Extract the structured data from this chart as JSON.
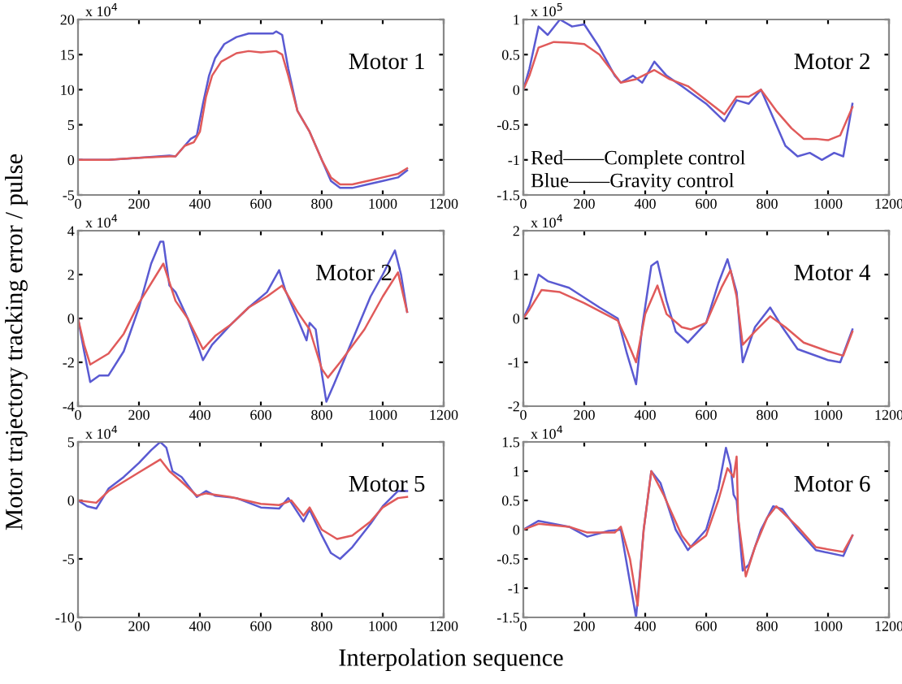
{
  "chart_data": [
    {
      "type": "line",
      "xlim": [
        0,
        1200
      ],
      "xticks": [
        0,
        200,
        400,
        600,
        800,
        1000,
        1200
      ],
      "ylim": [
        -5,
        20
      ],
      "yticks": [
        -5,
        0,
        5,
        10,
        15,
        20
      ],
      "grid": false,
      "annotations": [
        "x 10$^{4}$",
        "Motor 1"
      ],
      "series": [
        {
          "color": "#5a5ad2",
          "x": [
            0,
            100,
            200,
            300,
            320,
            350,
            370,
            390,
            410,
            430,
            450,
            480,
            520,
            560,
            600,
            640,
            650,
            670,
            690,
            720,
            760,
            800,
            830,
            860,
            900,
            950,
            1000,
            1050,
            1080
          ],
          "values": [
            0,
            0,
            0.3,
            0.6,
            0.5,
            2,
            3,
            3.5,
            8,
            12,
            14.5,
            16.5,
            17.5,
            18,
            18,
            18,
            18.3,
            17.8,
            13,
            7,
            4,
            0,
            -3,
            -4,
            -4,
            -3.5,
            -3,
            -2.5,
            -1.5
          ]
        },
        {
          "color": "#e05a5a",
          "x": [
            0,
            100,
            200,
            300,
            320,
            350,
            380,
            400,
            420,
            440,
            470,
            520,
            560,
            600,
            650,
            670,
            690,
            720,
            760,
            800,
            830,
            860,
            900,
            950,
            1000,
            1050,
            1080
          ],
          "values": [
            0,
            0,
            0.3,
            0.5,
            0.5,
            2,
            2.5,
            4,
            9,
            12,
            14,
            15.2,
            15.5,
            15.3,
            15.5,
            15,
            12,
            7,
            4,
            0,
            -2.5,
            -3.5,
            -3.5,
            -3,
            -2.5,
            -2,
            -1.2
          ]
        }
      ]
    },
    {
      "type": "line",
      "xlim": [
        0,
        1200
      ],
      "xticks": [
        0,
        200,
        400,
        600,
        800,
        1000,
        1200
      ],
      "ylim": [
        -1.5,
        1
      ],
      "yticks": [
        -1.5,
        -1,
        -0.5,
        0,
        0.5,
        1
      ],
      "grid": false,
      "annotations": [
        "x 10$^{5}$",
        "Motor 2",
        "Red——Complete control",
        "Blue——Gravity control"
      ],
      "series": [
        {
          "color": "#5a5ad2",
          "x": [
            0,
            20,
            50,
            80,
            120,
            160,
            200,
            250,
            300,
            320,
            360,
            390,
            430,
            470,
            520,
            600,
            660,
            700,
            740,
            780,
            820,
            860,
            900,
            940,
            980,
            1020,
            1050,
            1080
          ],
          "values": [
            0,
            0.3,
            0.9,
            0.78,
            1.0,
            0.9,
            0.93,
            0.6,
            0.2,
            0.1,
            0.2,
            0.1,
            0.4,
            0.2,
            0.05,
            -0.2,
            -0.45,
            -0.15,
            -0.2,
            0,
            -0.4,
            -0.8,
            -0.95,
            -0.9,
            -1.0,
            -0.9,
            -0.95,
            -0.2
          ]
        },
        {
          "color": "#e05a5a",
          "x": [
            0,
            20,
            50,
            100,
            150,
            200,
            250,
            320,
            370,
            430,
            480,
            540,
            600,
            660,
            700,
            740,
            780,
            830,
            880,
            920,
            960,
            1000,
            1040,
            1080
          ],
          "values": [
            0,
            0.2,
            0.6,
            0.68,
            0.67,
            0.65,
            0.5,
            0.1,
            0.15,
            0.28,
            0.15,
            0.05,
            -0.15,
            -0.35,
            -0.1,
            -0.1,
            0,
            -0.3,
            -0.55,
            -0.7,
            -0.7,
            -0.72,
            -0.65,
            -0.25
          ]
        }
      ]
    },
    {
      "type": "line",
      "xlim": [
        0,
        1200
      ],
      "xticks": [
        0,
        200,
        400,
        600,
        800,
        1000,
        1200
      ],
      "ylim": [
        -4,
        4
      ],
      "yticks": [
        -4,
        -2,
        0,
        2,
        4
      ],
      "grid": false,
      "ylabel": "Motor trajectory tracking error / pulse",
      "annotations": [
        "x 10$^{4}$",
        "Motor 2"
      ],
      "series": [
        {
          "color": "#5a5ad2",
          "x": [
            0,
            20,
            40,
            70,
            100,
            150,
            200,
            240,
            270,
            280,
            300,
            320,
            360,
            400,
            410,
            440,
            500,
            560,
            620,
            660,
            680,
            720,
            750,
            760,
            780,
            800,
            815,
            840,
            900,
            960,
            1000,
            1040,
            1060,
            1080
          ],
          "values": [
            0,
            -1.5,
            -2.9,
            -2.6,
            -2.6,
            -1.5,
            0.5,
            2.5,
            3.5,
            3.5,
            1.5,
            1.2,
            0,
            -1.5,
            -1.9,
            -1.2,
            -0.3,
            0.5,
            1.2,
            2.2,
            1.3,
            0,
            -1,
            -0.2,
            -0.5,
            -2.5,
            -3.8,
            -3,
            -1,
            1,
            2,
            3.1,
            2,
            0.3
          ]
        },
        {
          "color": "#e05a5a",
          "x": [
            0,
            20,
            40,
            100,
            150,
            200,
            280,
            320,
            360,
            410,
            450,
            500,
            560,
            620,
            670,
            720,
            760,
            800,
            820,
            860,
            940,
            1000,
            1050,
            1080
          ],
          "values": [
            0,
            -1.2,
            -2.1,
            -1.6,
            -0.7,
            0.7,
            2.5,
            0.8,
            0,
            -1.4,
            -0.8,
            -0.3,
            0.5,
            1,
            1.5,
            0.3,
            -0.5,
            -2.3,
            -2.7,
            -2,
            -0.5,
            1,
            2.1,
            0.3
          ]
        }
      ]
    },
    {
      "type": "line",
      "xlim": [
        0,
        1200
      ],
      "xticks": [
        0,
        200,
        400,
        600,
        800,
        1000,
        1200
      ],
      "ylim": [
        -2,
        2
      ],
      "yticks": [
        -2,
        -1,
        0,
        1,
        2
      ],
      "grid": false,
      "annotations": [
        "x 10$^{4}$",
        "Motor 4"
      ],
      "series": [
        {
          "color": "#5a5ad2",
          "x": [
            0,
            20,
            50,
            80,
            150,
            250,
            310,
            340,
            370,
            390,
            420,
            440,
            470,
            500,
            540,
            600,
            640,
            670,
            700,
            720,
            760,
            810,
            850,
            900,
            1000,
            1040,
            1080
          ],
          "values": [
            0,
            0.3,
            1.0,
            0.85,
            0.7,
            0.25,
            0,
            -0.8,
            -1.5,
            -0.2,
            1.2,
            1.3,
            0.4,
            -0.3,
            -0.55,
            -0.1,
            0.8,
            1.35,
            0.6,
            -1.0,
            -0.2,
            0.25,
            -0.2,
            -0.7,
            -0.95,
            -1.0,
            -0.25
          ]
        },
        {
          "color": "#e05a5a",
          "x": [
            0,
            20,
            60,
            120,
            200,
            310,
            340,
            370,
            400,
            440,
            470,
            520,
            550,
            600,
            650,
            680,
            700,
            720,
            760,
            810,
            860,
            920,
            1000,
            1050,
            1080
          ],
          "values": [
            0,
            0.2,
            0.65,
            0.6,
            0.35,
            -0.05,
            -0.5,
            -1.0,
            0.1,
            0.75,
            0.1,
            -0.2,
            -0.25,
            -0.1,
            0.7,
            1.1,
            0.5,
            -0.6,
            -0.3,
            0.05,
            -0.2,
            -0.55,
            -0.75,
            -0.85,
            -0.3
          ]
        }
      ]
    },
    {
      "type": "line",
      "xlim": [
        0,
        1200
      ],
      "xticks": [
        0,
        200,
        400,
        600,
        800,
        1000,
        1200
      ],
      "ylim": [
        -10,
        5
      ],
      "yticks": [
        -10,
        -5,
        0,
        5
      ],
      "grid": false,
      "xlabel": "Interpolation sequence",
      "annotations": [
        "x 10$^{4}$",
        "Motor 5"
      ],
      "series": [
        {
          "color": "#5a5ad2",
          "x": [
            0,
            30,
            60,
            100,
            150,
            200,
            240,
            270,
            290,
            310,
            340,
            390,
            420,
            450,
            520,
            600,
            660,
            690,
            740,
            760,
            800,
            830,
            860,
            900,
            960,
            1000,
            1050,
            1080
          ],
          "values": [
            0,
            -0.5,
            -0.7,
            1,
            2,
            3.2,
            4.3,
            5,
            4.5,
            2.5,
            2,
            0.3,
            0.8,
            0.4,
            0.2,
            -0.6,
            -0.7,
            0.2,
            -1.8,
            -0.8,
            -3,
            -4.5,
            -5,
            -4,
            -2,
            -0.5,
            0.8,
            0.8
          ]
        },
        {
          "color": "#e05a5a",
          "x": [
            0,
            60,
            100,
            150,
            200,
            270,
            300,
            340,
            390,
            420,
            500,
            600,
            660,
            700,
            740,
            760,
            800,
            850,
            900,
            960,
            1000,
            1050,
            1080
          ],
          "values": [
            0,
            -0.2,
            0.8,
            1.6,
            2.4,
            3.5,
            2.5,
            1.6,
            0.4,
            0.6,
            0.3,
            -0.3,
            -0.4,
            0,
            -1.3,
            -0.6,
            -2.5,
            -3.3,
            -3,
            -1.8,
            -0.6,
            0.2,
            0.3
          ]
        }
      ]
    },
    {
      "type": "line",
      "xlim": [
        0,
        1200
      ],
      "xticks": [
        0,
        200,
        400,
        600,
        800,
        1000,
        1200
      ],
      "ylim": [
        -1.5,
        1.5
      ],
      "yticks": [
        -1.5,
        -1,
        -0.5,
        0,
        0.5,
        1,
        1.5
      ],
      "grid": false,
      "annotations": [
        "x 10$^{4}$",
        "Motor 6"
      ],
      "series": [
        {
          "color": "#5a5ad2",
          "x": [
            0,
            50,
            150,
            210,
            280,
            320,
            340,
            370,
            395,
            420,
            450,
            500,
            540,
            600,
            640,
            665,
            680,
            690,
            700,
            720,
            740,
            780,
            820,
            850,
            900,
            960,
            1050,
            1080
          ],
          "values": [
            0,
            0.15,
            0.05,
            -0.12,
            -0.02,
            0,
            -0.6,
            -1.5,
            0,
            1,
            0.8,
            0,
            -0.35,
            0,
            0.7,
            1.4,
            1.1,
            0.6,
            0.5,
            -0.7,
            -0.6,
            0,
            0.4,
            0.35,
            0,
            -0.35,
            -0.45,
            -0.1
          ]
        },
        {
          "color": "#e05a5a",
          "x": [
            0,
            50,
            150,
            210,
            300,
            320,
            350,
            375,
            395,
            420,
            460,
            520,
            550,
            600,
            640,
            670,
            690,
            700,
            705,
            730,
            760,
            800,
            830,
            900,
            960,
            1050,
            1080
          ],
          "values": [
            0,
            0.1,
            0.05,
            -0.05,
            -0.05,
            0.05,
            -0.5,
            -1.3,
            0,
            1,
            0.6,
            -0.1,
            -0.3,
            -0.1,
            0.5,
            1.05,
            0.9,
            1.25,
            0.2,
            -0.8,
            -0.3,
            0.2,
            0.4,
            0.05,
            -0.3,
            -0.38,
            -0.1
          ]
        }
      ]
    }
  ]
}
